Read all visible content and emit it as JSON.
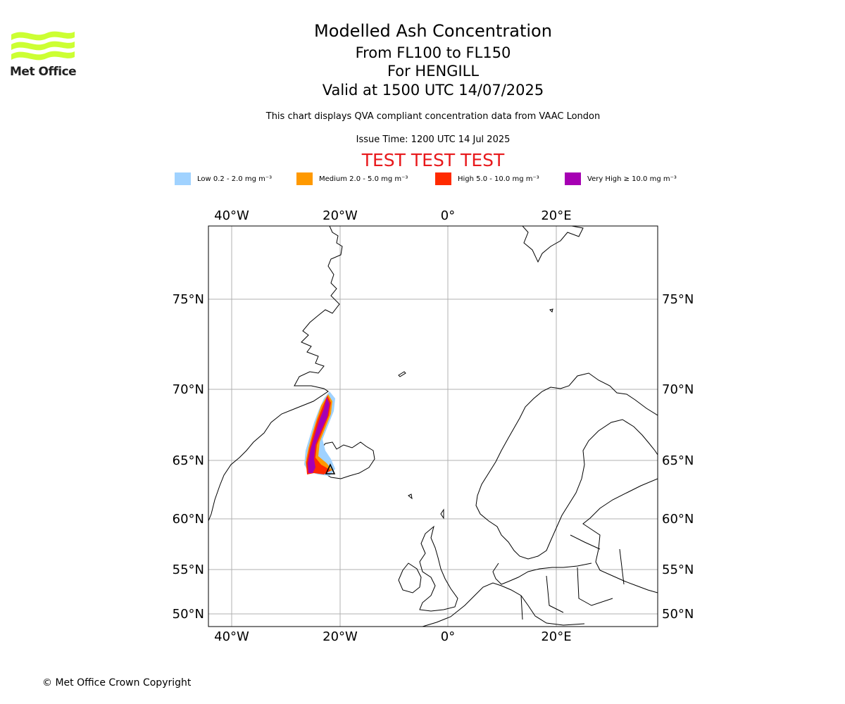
{
  "header": {
    "title": "Modelled Ash Concentration",
    "level": "From FL100 to FL150",
    "volcano": "For HENGILL",
    "valid": "Valid at 1500 UTC 14/07/2025",
    "description": "This chart displays QVA compliant concentration data from VAAC London",
    "issue_time": "Issue Time: 1200 UTC 14 Jul 2025",
    "test_banner": "TEST TEST TEST"
  },
  "logo": {
    "text": "Met Office",
    "color": "#ccff33"
  },
  "legend": [
    {
      "label": "Low 0.2 - 2.0 mg m⁻³",
      "color": "#a0d2ff"
    },
    {
      "label": "Medium 2.0 - 5.0 mg m⁻³",
      "color": "#ff9900"
    },
    {
      "label": "High 5.0 - 10.0 mg m⁻³",
      "color": "#ff2a00"
    },
    {
      "label": "Very High ≥ 10.0 mg m⁻³",
      "color": "#a600b3"
    }
  ],
  "map": {
    "lon_labels": [
      "40°W",
      "20°W",
      "0°",
      "20°E"
    ],
    "lat_labels": [
      "75°N",
      "70°N",
      "65°N",
      "60°N",
      "55°N",
      "50°N"
    ]
  },
  "footer": {
    "copyright": "© Met Office Crown Copyright"
  }
}
